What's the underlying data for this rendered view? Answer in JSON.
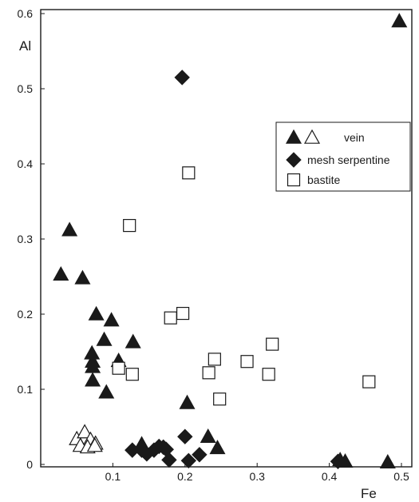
{
  "chart_data": {
    "type": "scatter",
    "title": "",
    "xlabel": "Fe",
    "ylabel": "Al",
    "xlim": [
      0,
      0.5
    ],
    "ylim": [
      0,
      0.6
    ],
    "x_ticks": [
      0.1,
      0.2,
      0.3,
      0.4,
      0.5
    ],
    "x_tick_labels": [
      "0.1",
      "0.2",
      "0.3",
      "0.4",
      "0.5"
    ],
    "y_ticks": [
      0,
      0.1,
      0.2,
      0.3,
      0.4,
      0.5,
      0.6
    ],
    "y_tick_labels": [
      "0",
      "0.1",
      "0.2",
      "0.3",
      "0.4",
      "0.5",
      "0.6"
    ],
    "grid": false,
    "legend": {
      "placement": "right",
      "entries": [
        {
          "label": "vein",
          "series": [
            "vein-filled",
            "vein-open"
          ]
        },
        {
          "label": "mesh serpentine",
          "series": [
            "mesh-serpentine"
          ]
        },
        {
          "label": "bastite",
          "series": [
            "bastite"
          ]
        }
      ]
    },
    "series": [
      {
        "id": "vein-filled",
        "marker": "filled-triangle",
        "color": "#1a1a1a",
        "points": [
          [
            0.04,
            0.312
          ],
          [
            0.028,
            0.253
          ],
          [
            0.058,
            0.248
          ],
          [
            0.077,
            0.2
          ],
          [
            0.098,
            0.192
          ],
          [
            0.088,
            0.166
          ],
          [
            0.128,
            0.163
          ],
          [
            0.071,
            0.148
          ],
          [
            0.072,
            0.137
          ],
          [
            0.072,
            0.13
          ],
          [
            0.108,
            0.138
          ],
          [
            0.072,
            0.112
          ],
          [
            0.091,
            0.096
          ],
          [
            0.203,
            0.082
          ],
          [
            0.232,
            0.037
          ],
          [
            0.245,
            0.022
          ],
          [
            0.14,
            0.027
          ],
          [
            0.497,
            0.59
          ],
          [
            0.415,
            0.006
          ],
          [
            0.422,
            0.004
          ],
          [
            0.481,
            0.003
          ]
        ]
      },
      {
        "id": "vein-open",
        "marker": "open-triangle",
        "color": "#1a1a1a",
        "points": [
          [
            0.05,
            0.034
          ],
          [
            0.061,
            0.043
          ],
          [
            0.069,
            0.033
          ],
          [
            0.076,
            0.028
          ],
          [
            0.055,
            0.025
          ],
          [
            0.065,
            0.023
          ],
          [
            0.075,
            0.025
          ]
        ]
      },
      {
        "id": "mesh-serpentine",
        "marker": "filled-diamond",
        "color": "#1a1a1a",
        "points": [
          [
            0.196,
            0.515
          ],
          [
            0.2,
            0.037
          ],
          [
            0.127,
            0.019
          ],
          [
            0.14,
            0.019
          ],
          [
            0.147,
            0.014
          ],
          [
            0.157,
            0.019
          ],
          [
            0.164,
            0.024
          ],
          [
            0.17,
            0.023
          ],
          [
            0.174,
            0.02
          ],
          [
            0.178,
            0.006
          ],
          [
            0.205,
            0.005
          ],
          [
            0.22,
            0.013
          ],
          [
            0.412,
            0.004
          ]
        ]
      },
      {
        "id": "bastite",
        "marker": "open-square",
        "color": "#1a1a1a",
        "points": [
          [
            0.205,
            0.388
          ],
          [
            0.123,
            0.318
          ],
          [
            0.197,
            0.201
          ],
          [
            0.18,
            0.195
          ],
          [
            0.321,
            0.16
          ],
          [
            0.241,
            0.14
          ],
          [
            0.286,
            0.137
          ],
          [
            0.108,
            0.128
          ],
          [
            0.127,
            0.12
          ],
          [
            0.233,
            0.122
          ],
          [
            0.316,
            0.12
          ],
          [
            0.248,
            0.087
          ],
          [
            0.455,
            0.11
          ]
        ]
      }
    ]
  }
}
